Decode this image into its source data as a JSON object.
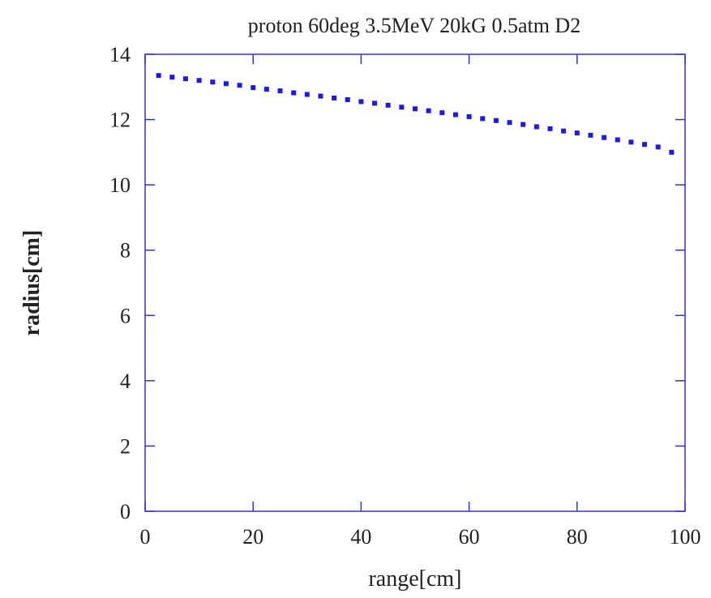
{
  "chart_data": {
    "type": "scatter",
    "title": "proton 60deg 3.5MeV 20kG 0.5atm D2",
    "xlabel": "range[cm]",
    "ylabel": "radius[cm]",
    "xlim": [
      0,
      100
    ],
    "ylim": [
      0,
      14
    ],
    "xticks": [
      "0",
      "20",
      "40",
      "60",
      "80",
      "100"
    ],
    "yticks": [
      "0",
      "2",
      "4",
      "6",
      "8",
      "10",
      "12",
      "14"
    ],
    "grid": false,
    "legend": "none",
    "colors": {
      "axis": "#3333cc",
      "points": "#1a1aee",
      "text": "#222222"
    },
    "series": [
      {
        "x": [
          2.5,
          5.0,
          7.5,
          10.0,
          12.5,
          15.0,
          17.5,
          20.0,
          22.5,
          25.0,
          27.5,
          30.0,
          32.5,
          35.0,
          37.5,
          40.0,
          42.5,
          45.0,
          47.5,
          50.0,
          52.5,
          55.0,
          57.5,
          60.0,
          62.5,
          65.0,
          67.5,
          70.0,
          72.5,
          75.0,
          77.5,
          80.0,
          82.5,
          85.0,
          87.5,
          90.0,
          92.5,
          95.0,
          97.5
        ],
        "y": [
          13.35,
          13.3,
          13.25,
          13.2,
          13.15,
          13.1,
          13.05,
          12.98,
          12.93,
          12.88,
          12.82,
          12.77,
          12.72,
          12.66,
          12.61,
          12.55,
          12.5,
          12.44,
          12.38,
          12.33,
          12.27,
          12.21,
          12.15,
          12.09,
          12.03,
          11.97,
          11.91,
          11.85,
          11.78,
          11.72,
          11.65,
          11.59,
          11.52,
          11.45,
          11.38,
          11.31,
          11.24,
          11.16,
          11.0
        ]
      }
    ]
  }
}
